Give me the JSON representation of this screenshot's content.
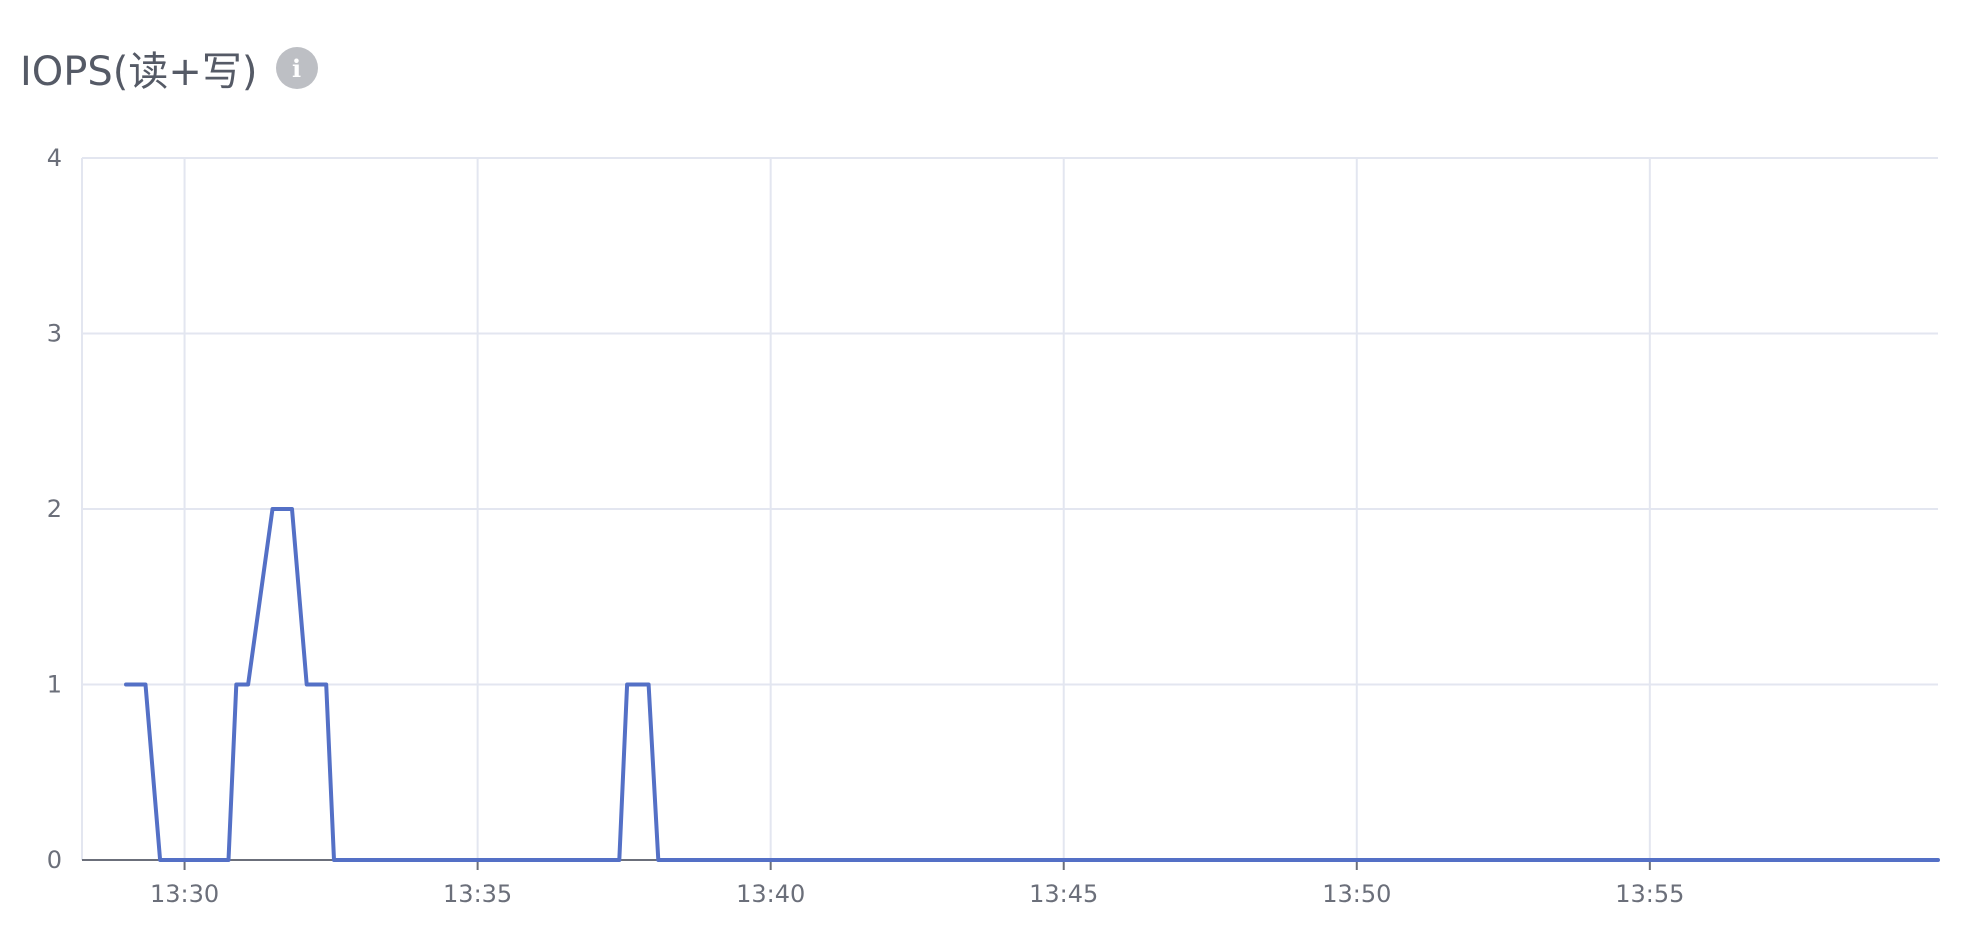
{
  "header": {
    "title": "IOPS(读+写)",
    "info_icon": "info-icon"
  },
  "chart_data": {
    "type": "line",
    "title": "IOPS(读+写)",
    "xlabel": "",
    "ylabel": "",
    "x_ticks": [
      "13:30",
      "13:35",
      "13:40",
      "13:45",
      "13:50",
      "13:55"
    ],
    "xlim": [
      "13:28:15",
      "13:59:55"
    ],
    "ylim": [
      0,
      4
    ],
    "y_ticks": [
      0,
      1,
      2,
      3,
      4
    ],
    "grid": true,
    "line_color": "#5470c6",
    "series": [
      {
        "x": [
          "13:29:00",
          "13:29:20",
          "13:29:35",
          "13:30:45",
          "13:30:53",
          "13:31:05",
          "13:31:30",
          "13:31:50",
          "13:32:05",
          "13:32:25",
          "13:32:33",
          "13:37:25",
          "13:37:33",
          "13:37:55",
          "13:38:05",
          "13:59:55"
        ],
        "values": [
          1,
          1,
          0,
          0,
          1,
          1,
          2,
          2,
          1,
          1,
          0,
          0,
          1,
          1,
          0,
          0
        ]
      }
    ]
  }
}
